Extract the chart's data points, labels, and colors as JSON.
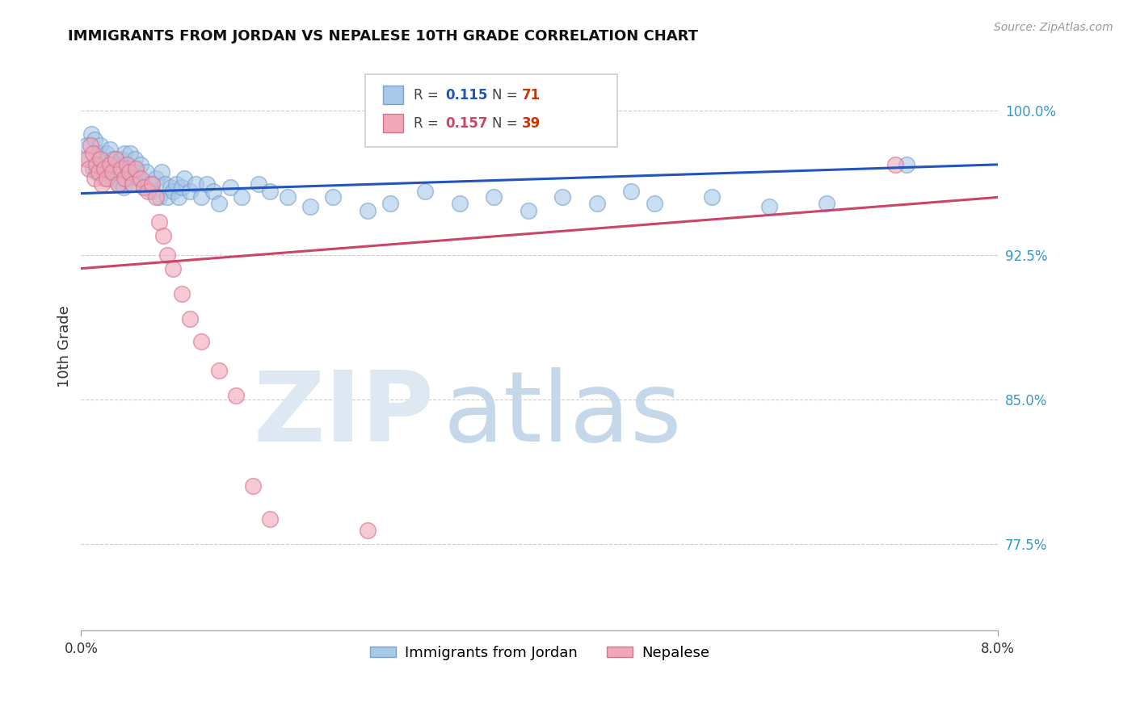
{
  "title": "IMMIGRANTS FROM JORDAN VS NEPALESE 10TH GRADE CORRELATION CHART",
  "source": "Source: ZipAtlas.com",
  "ylabel": "10th Grade",
  "xlim": [
    0.0,
    8.0
  ],
  "ylim": [
    73.0,
    102.5
  ],
  "yticks": [
    77.5,
    85.0,
    92.5,
    100.0
  ],
  "ytick_labels": [
    "77.5%",
    "85.0%",
    "92.5%",
    "100.0%"
  ],
  "legend_labels_bottom": [
    "Immigrants from Jordan",
    "Nepalese"
  ],
  "blue_color": "#a8c8e8",
  "pink_color": "#f0a8b8",
  "blue_edge_color": "#7aa0cc",
  "pink_edge_color": "#d87090",
  "blue_line_color": "#2255bb",
  "pink_line_color": "#cc4466",
  "blue_R": "0.115",
  "blue_N": "71",
  "pink_R": "0.157",
  "pink_N": "39",
  "blue_line_y0": 95.7,
  "blue_line_y1": 97.2,
  "pink_line_y0": 91.8,
  "pink_line_y1": 95.5,
  "blue_scatter_x": [
    0.05,
    0.07,
    0.09,
    0.1,
    0.12,
    0.13,
    0.15,
    0.17,
    0.18,
    0.2,
    0.22,
    0.23,
    0.25,
    0.27,
    0.28,
    0.3,
    0.32,
    0.33,
    0.35,
    0.37,
    0.38,
    0.4,
    0.42,
    0.43,
    0.45,
    0.47,
    0.48,
    0.5,
    0.52,
    0.55,
    0.57,
    0.6,
    0.62,
    0.65,
    0.68,
    0.7,
    0.73,
    0.75,
    0.78,
    0.8,
    0.83,
    0.85,
    0.88,
    0.9,
    0.95,
    1.0,
    1.05,
    1.1,
    1.15,
    1.2,
    1.3,
    1.4,
    1.55,
    1.65,
    1.8,
    2.0,
    2.2,
    2.5,
    2.7,
    3.0,
    3.3,
    3.6,
    3.9,
    4.2,
    4.5,
    4.8,
    5.0,
    5.5,
    6.0,
    6.5,
    7.2
  ],
  "blue_scatter_y": [
    98.2,
    97.5,
    98.8,
    97.0,
    98.5,
    96.8,
    97.8,
    98.2,
    97.2,
    96.5,
    97.8,
    97.0,
    98.0,
    96.5,
    97.5,
    96.8,
    97.2,
    96.2,
    97.5,
    96.0,
    97.8,
    96.5,
    97.0,
    97.8,
    96.2,
    97.5,
    96.8,
    96.5,
    97.2,
    96.0,
    96.8,
    96.2,
    95.8,
    96.5,
    95.5,
    96.8,
    96.2,
    95.5,
    96.0,
    95.8,
    96.2,
    95.5,
    96.0,
    96.5,
    95.8,
    96.2,
    95.5,
    96.2,
    95.8,
    95.2,
    96.0,
    95.5,
    96.2,
    95.8,
    95.5,
    95.0,
    95.5,
    94.8,
    95.2,
    95.8,
    95.2,
    95.5,
    94.8,
    95.5,
    95.2,
    95.8,
    95.2,
    95.5,
    95.0,
    95.2,
    97.2
  ],
  "pink_scatter_x": [
    0.05,
    0.07,
    0.08,
    0.1,
    0.12,
    0.13,
    0.15,
    0.17,
    0.18,
    0.2,
    0.22,
    0.25,
    0.27,
    0.3,
    0.32,
    0.35,
    0.38,
    0.4,
    0.42,
    0.45,
    0.48,
    0.52,
    0.55,
    0.58,
    0.62,
    0.65,
    0.68,
    0.72,
    0.75,
    0.8,
    0.88,
    0.95,
    1.05,
    1.2,
    1.35,
    1.5,
    1.65,
    2.5,
    7.1
  ],
  "pink_scatter_y": [
    97.5,
    97.0,
    98.2,
    97.8,
    96.5,
    97.2,
    96.8,
    97.5,
    96.2,
    97.0,
    96.5,
    97.2,
    96.8,
    97.5,
    96.2,
    97.0,
    96.5,
    97.2,
    96.8,
    96.2,
    97.0,
    96.5,
    96.0,
    95.8,
    96.2,
    95.5,
    94.2,
    93.5,
    92.5,
    91.8,
    90.5,
    89.2,
    88.0,
    86.5,
    85.2,
    80.5,
    78.8,
    78.2,
    97.2
  ]
}
